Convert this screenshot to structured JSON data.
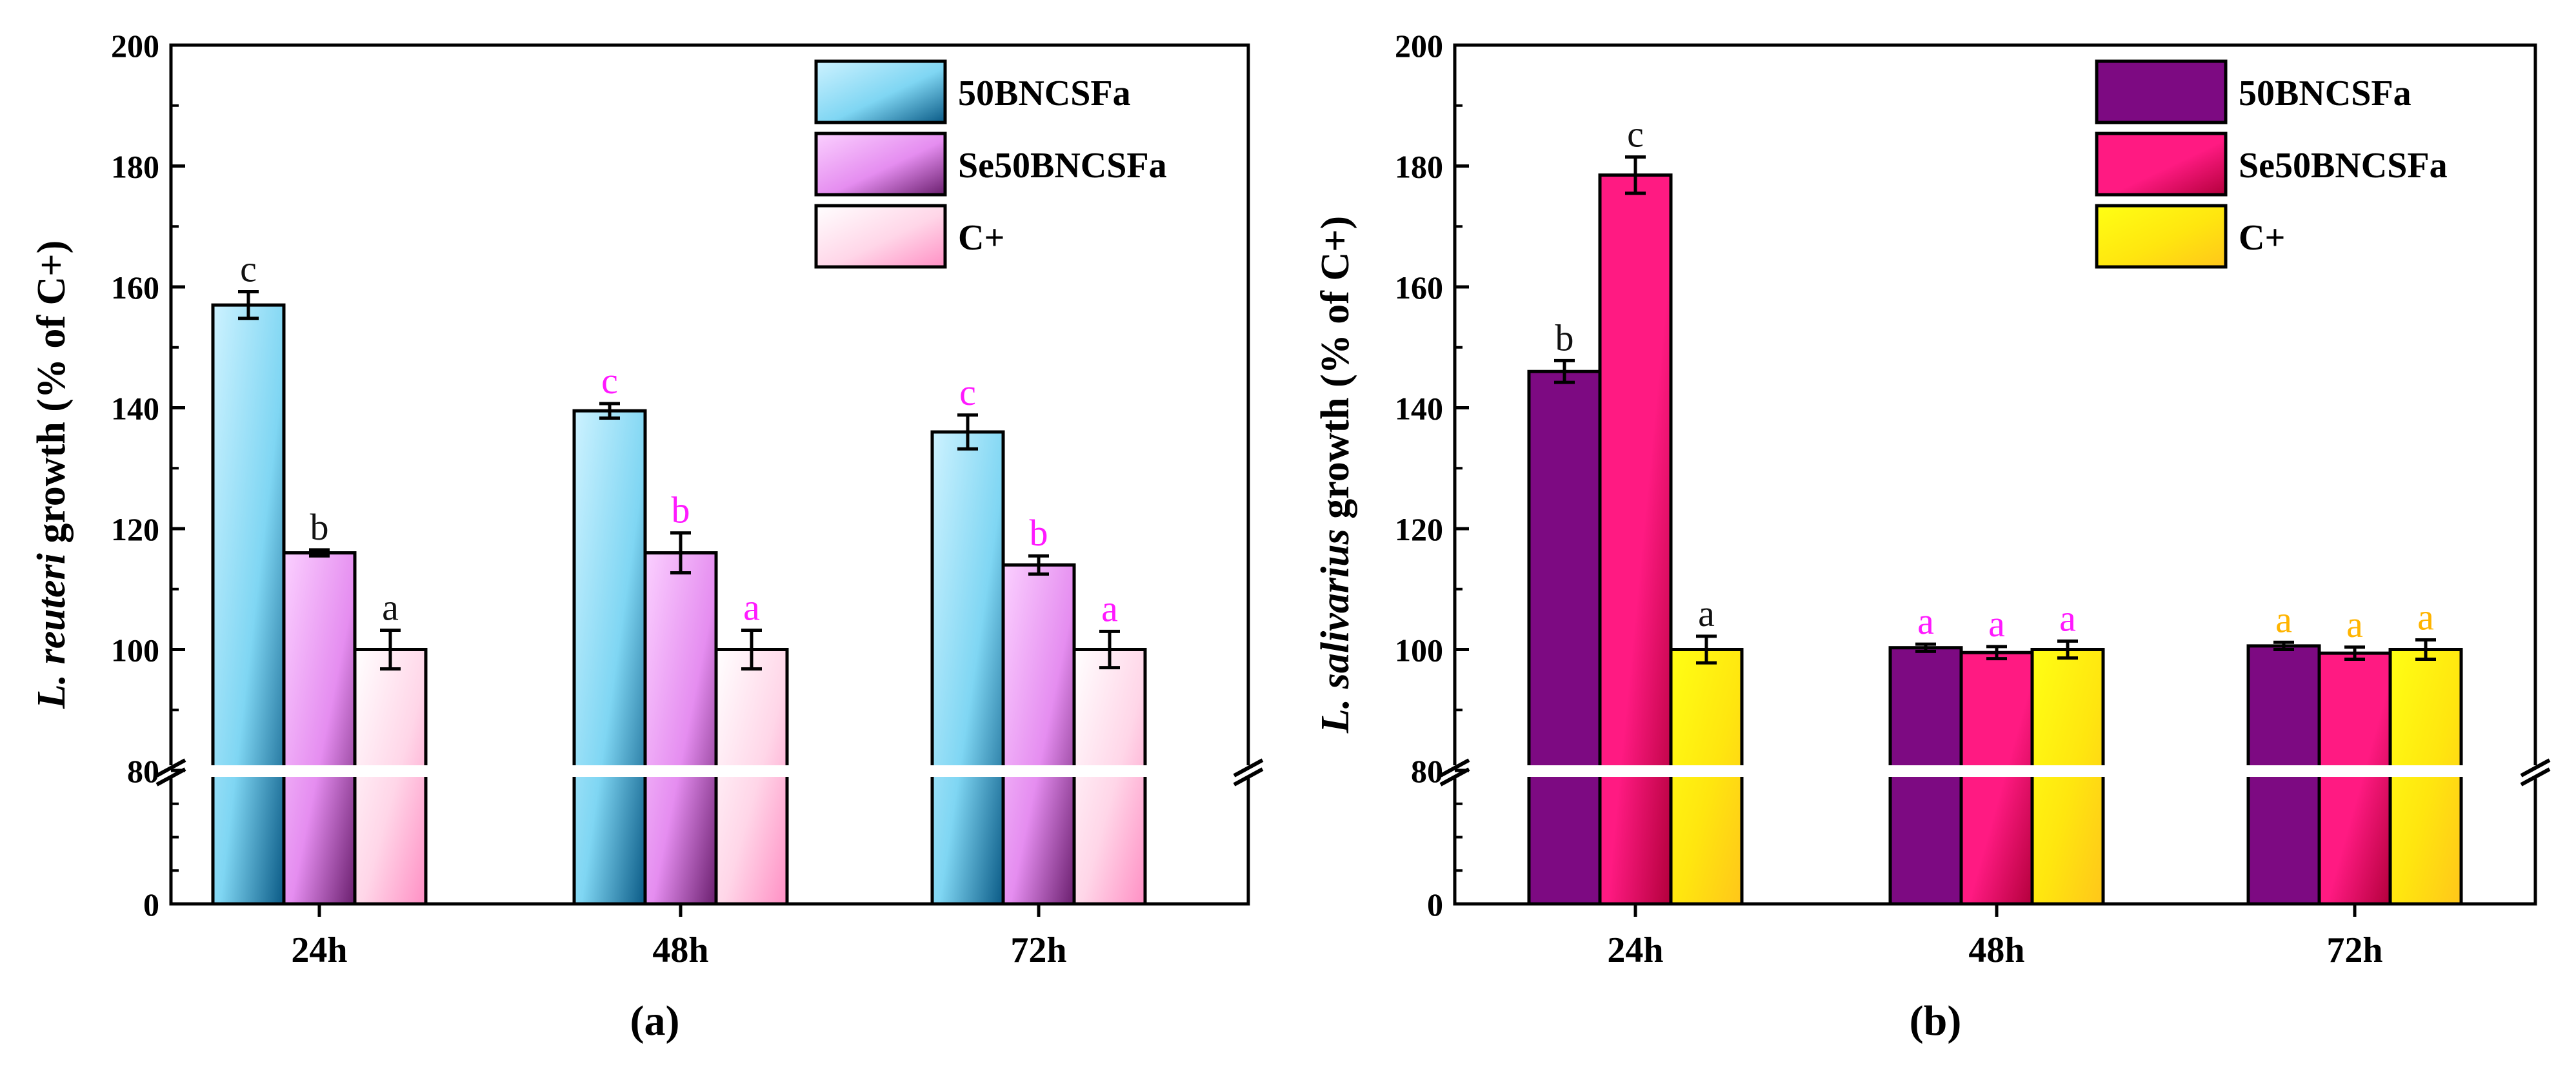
{
  "chart_data": [
    {
      "type": "bar",
      "panel_label": "(a)",
      "title": "",
      "ylabel_italic": "L. reuteri",
      "ylabel_rest": " growth (% of C+)",
      "xlabel": "",
      "categories": [
        "24h",
        "48h",
        "72h"
      ],
      "y_ticks_upper": [
        80,
        100,
        120,
        140,
        160,
        180,
        200
      ],
      "y_tick_lower": 0,
      "ylim_upper": [
        80,
        200
      ],
      "ylim_lower": [
        0,
        80
      ],
      "axis_break": true,
      "legend_position": "top-right",
      "series": [
        {
          "name": "50BNCSFa",
          "values": [
            157,
            139.5,
            136
          ],
          "errors": [
            2.2,
            1.2,
            2.8
          ],
          "letters": [
            "c",
            "c",
            "c"
          ],
          "letter_colors": [
            "#111111",
            "#ff19ff",
            "#ff19ff"
          ]
        },
        {
          "name": "Se50BNCSFa",
          "values": [
            116,
            116,
            114
          ],
          "errors": [
            0.5,
            3.3,
            1.5
          ],
          "letters": [
            "b",
            "b",
            "b"
          ],
          "letter_colors": [
            "#111111",
            "#ff19ff",
            "#ff19ff"
          ]
        },
        {
          "name": "C+",
          "values": [
            100,
            100,
            100
          ],
          "errors": [
            3.2,
            3.2,
            3.0
          ],
          "letters": [
            "a",
            "a",
            "a"
          ],
          "letter_colors": [
            "#111111",
            "#ff19ff",
            "#ff19ff"
          ]
        }
      ],
      "colors": {
        "50BNCSFa": {
          "light": "#cdf2ff",
          "mid": "#7fd6f3",
          "dark": "#0a5a86"
        },
        "Se50BNCSFa": {
          "light": "#fbd0ff",
          "mid": "#e58df0",
          "dark": "#6a1f6e"
        },
        "C+": {
          "light": "#ffffff",
          "mid": "#ffd6e8",
          "dark": "#ff8fc4"
        }
      }
    },
    {
      "type": "bar",
      "panel_label": "(b)",
      "title": "",
      "ylabel_italic": "L. salivarius",
      "ylabel_rest": " growth (% of C+)",
      "xlabel": "",
      "categories": [
        "24h",
        "48h",
        "72h"
      ],
      "y_ticks_upper": [
        80,
        100,
        120,
        140,
        160,
        180,
        200
      ],
      "y_tick_lower": 0,
      "ylim_upper": [
        80,
        200
      ],
      "ylim_lower": [
        0,
        80
      ],
      "axis_break": true,
      "legend_position": "top-right",
      "series": [
        {
          "name": "50BNCSFa",
          "values": [
            146,
            100.3,
            100.6
          ],
          "errors": [
            1.8,
            0.6,
            0.6
          ],
          "letters": [
            "b",
            "a",
            "a"
          ],
          "letter_colors": [
            "#111111",
            "#ff19ff",
            "#ffb400"
          ]
        },
        {
          "name": "Se50BNCSFa",
          "values": [
            178.5,
            99.5,
            99.4
          ],
          "errors": [
            3.0,
            1.0,
            1.0
          ],
          "letters": [
            "c",
            "a",
            "a"
          ],
          "letter_colors": [
            "#111111",
            "#ff19ff",
            "#ffb400"
          ]
        },
        {
          "name": "C+",
          "values": [
            100,
            100,
            100
          ],
          "errors": [
            2.2,
            1.4,
            1.6
          ],
          "letters": [
            "a",
            "a",
            "a"
          ],
          "letter_colors": [
            "#111111",
            "#ff19ff",
            "#ffb400"
          ]
        }
      ],
      "colors": {
        "50BNCSFa": {
          "light": "#7d0a82",
          "mid": "#7d0a82",
          "dark": "#7d0a82"
        },
        "Se50BNCSFa": {
          "light": "#ff1a82",
          "mid": "#ff1a82",
          "dark": "#b3003c"
        },
        "C+": {
          "light": "#ffff14",
          "mid": "#ffe60f",
          "dark": "#ffc61a"
        }
      }
    }
  ]
}
